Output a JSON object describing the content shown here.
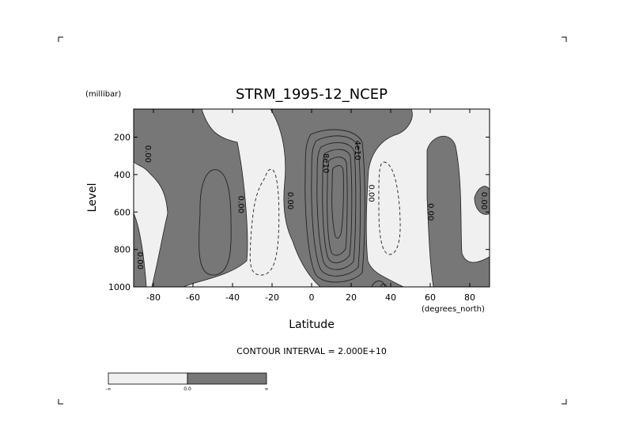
{
  "chart_data": {
    "type": "contour",
    "title": "STRM_1995-12_NCEP",
    "xlabel": "Latitude",
    "x_units": "(degrees_north)",
    "y_units": "(millibar)",
    "ylabel": "Level",
    "xlim": [
      -90,
      90
    ],
    "ylim": [
      1000,
      50
    ],
    "y_reversed": true,
    "x_ticks": [
      -80,
      -60,
      -40,
      -20,
      0,
      20,
      40,
      60,
      80
    ],
    "x_tick_labels": [
      "-80",
      "-60",
      "-40",
      "-20",
      "0",
      "20",
      "40",
      "60",
      "80"
    ],
    "y_ticks": [
      200,
      400,
      600,
      800,
      1000
    ],
    "y_tick_labels": [
      "200",
      "400",
      "600",
      "800",
      "1000"
    ],
    "contour_interval_text": "CONTOUR INTERVAL = 2.000E+10",
    "contour_interval": 20000000000,
    "contour_labels": [
      {
        "text": "0.00",
        "lat": -84,
        "level": 290
      },
      {
        "text": "0.00",
        "lat": -88,
        "level": 860
      },
      {
        "text": "0.00",
        "lat": -37,
        "level": 560
      },
      {
        "text": "0.00",
        "lat": -12,
        "level": 540
      },
      {
        "text": "8e10",
        "lat": 6,
        "level": 340
      },
      {
        "text": "4e10",
        "lat": 22,
        "level": 270
      },
      {
        "text": "0.00",
        "lat": 29,
        "level": 500
      },
      {
        "text": "0.00",
        "lat": 59,
        "level": 600
      },
      {
        "text": "0.00",
        "lat": 86,
        "level": 540
      }
    ],
    "shading": {
      "positive_color": "#777777",
      "negative_color": "#f0f0f0"
    },
    "colorbar": {
      "colors": [
        "#f0f0f0",
        "#777777"
      ],
      "tick_labels": [
        "-∞",
        "0.0",
        "∞"
      ]
    },
    "grid": false
  }
}
